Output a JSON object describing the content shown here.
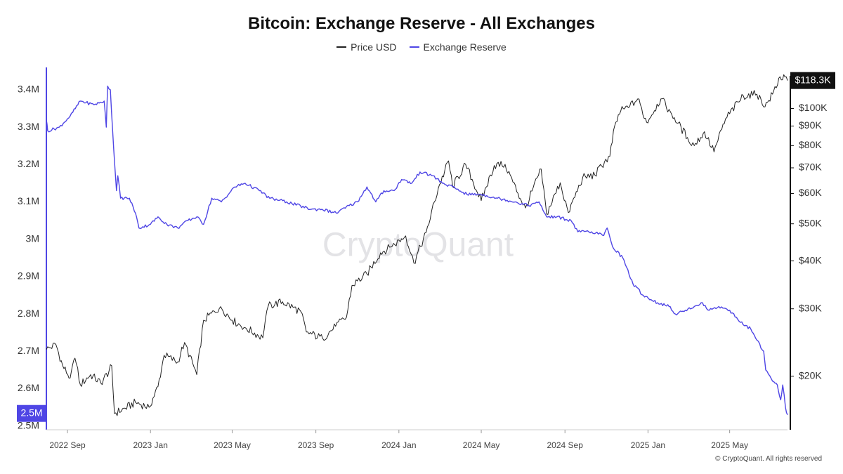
{
  "chart_data": {
    "type": "line",
    "title": "Bitcoin: Exchange Reserve - All Exchanges",
    "legend": {
      "placement": "top-center"
    },
    "x_axis": {
      "ticks": [
        "2022 Sep",
        "2023 Jan",
        "2023 May",
        "2023 Sep",
        "2024 Jan",
        "2024 May",
        "2024 Sep",
        "2025 Jan",
        "2025 May"
      ],
      "range": [
        "2022-08-01",
        "2025-07-25"
      ]
    },
    "y_left": {
      "ticks": [
        "3.4M",
        "3.3M",
        "3.2M",
        "3.1M",
        "3M",
        "2.9M",
        "2.8M",
        "2.7M",
        "2.6M",
        "2.5M"
      ],
      "tick_values": [
        3.4,
        3.3,
        3.2,
        3.1,
        3.0,
        2.9,
        2.8,
        2.7,
        2.6,
        2.5
      ],
      "range": [
        2.49,
        3.46
      ],
      "unit": "M BTC",
      "current_label": "2.5M",
      "axis_color": "#4f46e5"
    },
    "y_right": {
      "scale": "log",
      "ticks": [
        "$100K",
        "$90K",
        "$80K",
        "$70K",
        "$60K",
        "$50K",
        "$40K",
        "$30K",
        "$20K"
      ],
      "tick_values": [
        100000,
        90000,
        80000,
        70000,
        60000,
        50000,
        40000,
        30000,
        20000
      ],
      "range": [
        14500,
        128000
      ],
      "current_label": "$118.3K",
      "axis_color": "#111111"
    },
    "grid": false,
    "series": [
      {
        "name": "Price USD",
        "axis": "right",
        "color": "#222222",
        "points": [
          [
            "2022-08-01",
            23500
          ],
          [
            "2022-08-15",
            24200
          ],
          [
            "2022-08-25",
            21300
          ],
          [
            "2022-09-05",
            19800
          ],
          [
            "2022-09-12",
            22300
          ],
          [
            "2022-09-20",
            19000
          ],
          [
            "2022-10-05",
            20200
          ],
          [
            "2022-10-20",
            19200
          ],
          [
            "2022-11-01",
            20600
          ],
          [
            "2022-11-05",
            21300
          ],
          [
            "2022-11-09",
            16000
          ],
          [
            "2022-11-25",
            16500
          ],
          [
            "2022-12-10",
            17100
          ],
          [
            "2022-12-30",
            16600
          ],
          [
            "2023-01-12",
            18800
          ],
          [
            "2023-01-21",
            22700
          ],
          [
            "2023-02-10",
            21800
          ],
          [
            "2023-02-20",
            24500
          ],
          [
            "2023-03-10",
            20200
          ],
          [
            "2023-03-20",
            28000
          ],
          [
            "2023-04-14",
            30400
          ],
          [
            "2023-05-01",
            28000
          ],
          [
            "2023-05-20",
            26800
          ],
          [
            "2023-06-15",
            25200
          ],
          [
            "2023-06-23",
            30500
          ],
          [
            "2023-07-14",
            31300
          ],
          [
            "2023-08-10",
            29500
          ],
          [
            "2023-08-18",
            26100
          ],
          [
            "2023-09-11",
            25100
          ],
          [
            "2023-09-30",
            27000
          ],
          [
            "2023-10-16",
            28500
          ],
          [
            "2023-10-24",
            34500
          ],
          [
            "2023-11-15",
            37000
          ],
          [
            "2023-12-05",
            42000
          ],
          [
            "2023-12-20",
            43500
          ],
          [
            "2024-01-11",
            46500
          ],
          [
            "2024-01-23",
            39500
          ],
          [
            "2024-02-10",
            47500
          ],
          [
            "2024-02-28",
            62000
          ],
          [
            "2024-03-14",
            73000
          ],
          [
            "2024-03-20",
            62500
          ],
          [
            "2024-04-08",
            71500
          ],
          [
            "2024-05-01",
            57500
          ],
          [
            "2024-05-20",
            71000
          ],
          [
            "2024-06-05",
            71500
          ],
          [
            "2024-06-24",
            60000
          ],
          [
            "2024-07-05",
            55000
          ],
          [
            "2024-07-28",
            69500
          ],
          [
            "2024-08-05",
            53000
          ],
          [
            "2024-08-25",
            64000
          ],
          [
            "2024-09-06",
            53500
          ],
          [
            "2024-09-27",
            66000
          ],
          [
            "2024-10-15",
            67000
          ],
          [
            "2024-10-29",
            72500
          ],
          [
            "2024-11-06",
            75000
          ],
          [
            "2024-11-13",
            90000
          ],
          [
            "2024-11-22",
            98500
          ],
          [
            "2024-12-05",
            101000
          ],
          [
            "2024-12-17",
            106000
          ],
          [
            "2024-12-30",
            92000
          ],
          [
            "2025-01-20",
            106000
          ],
          [
            "2025-02-03",
            98000
          ],
          [
            "2025-02-28",
            84000
          ],
          [
            "2025-03-10",
            80000
          ],
          [
            "2025-03-25",
            87000
          ],
          [
            "2025-04-08",
            77000
          ],
          [
            "2025-04-25",
            94000
          ],
          [
            "2025-05-21",
            108000
          ],
          [
            "2025-06-10",
            109000
          ],
          [
            "2025-06-22",
            101000
          ],
          [
            "2025-07-03",
            109000
          ],
          [
            "2025-07-14",
            121000
          ],
          [
            "2025-07-25",
            118300
          ]
        ]
      },
      {
        "name": "Exchange Reserve",
        "axis": "left",
        "color": "#4f46e5",
        "points": [
          [
            "2022-08-01",
            3.32
          ],
          [
            "2022-08-03",
            3.29
          ],
          [
            "2022-08-20",
            3.3
          ],
          [
            "2022-09-05",
            3.33
          ],
          [
            "2022-09-20",
            3.37
          ],
          [
            "2022-10-10",
            3.36
          ],
          [
            "2022-10-25",
            3.37
          ],
          [
            "2022-10-28",
            3.3
          ],
          [
            "2022-10-30",
            3.41
          ],
          [
            "2022-11-03",
            3.4
          ],
          [
            "2022-11-08",
            3.24
          ],
          [
            "2022-11-12",
            3.13
          ],
          [
            "2022-11-14",
            3.17
          ],
          [
            "2022-11-18",
            3.11
          ],
          [
            "2022-12-01",
            3.11
          ],
          [
            "2022-12-10",
            3.07
          ],
          [
            "2022-12-15",
            3.03
          ],
          [
            "2023-01-01",
            3.04
          ],
          [
            "2023-01-12",
            3.06
          ],
          [
            "2023-01-25",
            3.04
          ],
          [
            "2023-02-10",
            3.03
          ],
          [
            "2023-02-25",
            3.05
          ],
          [
            "2023-03-10",
            3.06
          ],
          [
            "2023-03-20",
            3.04
          ],
          [
            "2023-04-01",
            3.11
          ],
          [
            "2023-04-15",
            3.1
          ],
          [
            "2023-05-05",
            3.14
          ],
          [
            "2023-05-20",
            3.15
          ],
          [
            "2023-06-10",
            3.13
          ],
          [
            "2023-06-25",
            3.11
          ],
          [
            "2023-07-20",
            3.1
          ],
          [
            "2023-08-25",
            3.08
          ],
          [
            "2023-09-10",
            3.08
          ],
          [
            "2023-10-01",
            3.07
          ],
          [
            "2023-10-20",
            3.09
          ],
          [
            "2023-11-01",
            3.1
          ],
          [
            "2023-11-15",
            3.14
          ],
          [
            "2023-11-28",
            3.1
          ],
          [
            "2023-12-10",
            3.13
          ],
          [
            "2023-12-25",
            3.13
          ],
          [
            "2024-01-05",
            3.16
          ],
          [
            "2024-01-20",
            3.15
          ],
          [
            "2024-02-01",
            3.18
          ],
          [
            "2024-02-20",
            3.17
          ],
          [
            "2024-03-05",
            3.15
          ],
          [
            "2024-03-20",
            3.14
          ],
          [
            "2024-04-10",
            3.12
          ],
          [
            "2024-05-01",
            3.12
          ],
          [
            "2024-05-25",
            3.11
          ],
          [
            "2024-06-20",
            3.1
          ],
          [
            "2024-07-10",
            3.09
          ],
          [
            "2024-07-25",
            3.1
          ],
          [
            "2024-08-05",
            3.06
          ],
          [
            "2024-08-20",
            3.06
          ],
          [
            "2024-09-10",
            3.05
          ],
          [
            "2024-09-20",
            3.02
          ],
          [
            "2024-10-10",
            3.02
          ],
          [
            "2024-10-28",
            3.01
          ],
          [
            "2024-11-02",
            3.03
          ],
          [
            "2024-11-10",
            2.98
          ],
          [
            "2024-11-25",
            2.95
          ],
          [
            "2024-12-10",
            2.88
          ],
          [
            "2024-12-25",
            2.85
          ],
          [
            "2025-01-15",
            2.83
          ],
          [
            "2025-02-01",
            2.82
          ],
          [
            "2025-02-10",
            2.8
          ],
          [
            "2025-02-25",
            2.81
          ],
          [
            "2025-03-10",
            2.82
          ],
          [
            "2025-03-20",
            2.83
          ],
          [
            "2025-04-01",
            2.81
          ],
          [
            "2025-04-15",
            2.82
          ],
          [
            "2025-05-01",
            2.81
          ],
          [
            "2025-05-15",
            2.78
          ],
          [
            "2025-06-01",
            2.76
          ],
          [
            "2025-06-10",
            2.73
          ],
          [
            "2025-06-20",
            2.7
          ],
          [
            "2025-06-23",
            2.65
          ],
          [
            "2025-07-03",
            2.62
          ],
          [
            "2025-07-10",
            2.61
          ],
          [
            "2025-07-15",
            2.57
          ],
          [
            "2025-07-18",
            2.61
          ],
          [
            "2025-07-22",
            2.55
          ],
          [
            "2025-07-25",
            2.53
          ]
        ]
      }
    ]
  },
  "watermark": "CryptoQuant",
  "footer": "© CryptoQuant. All rights reserved"
}
